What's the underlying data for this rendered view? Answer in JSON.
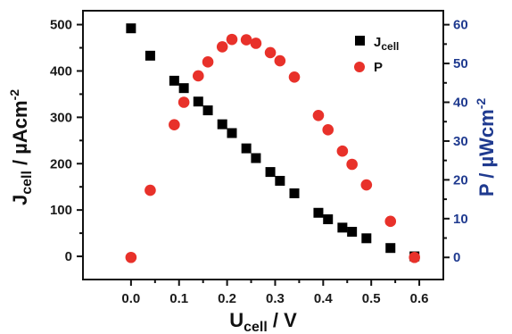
{
  "chart_data": {
    "type": "scatter",
    "x_axis": {
      "label_main": "U",
      "label_sub": "cell",
      "label_rest": " / V",
      "lim": [
        -0.1,
        0.65
      ],
      "ticks": [
        0.0,
        0.1,
        0.2,
        0.3,
        0.4,
        0.5,
        0.6
      ],
      "tick_labels": [
        "0.0",
        "0.1",
        "0.2",
        "0.3",
        "0.4",
        "0.5",
        "0.6"
      ]
    },
    "y_left": {
      "label_main": "J",
      "label_sub": "cell",
      "label_rest": " / µAcm",
      "label_sup": "-2",
      "lim": [
        -50,
        530
      ],
      "ticks": [
        0,
        100,
        200,
        300,
        400,
        500
      ],
      "tick_labels": [
        "0",
        "100",
        "200",
        "300",
        "400",
        "500"
      ]
    },
    "y_right": {
      "label_rest": "P / µWcm",
      "label_sup": "-2",
      "lim": [
        -5.7,
        63.6
      ],
      "ticks": [
        0,
        10,
        20,
        30,
        40,
        50,
        60
      ],
      "tick_labels": [
        "0",
        "10",
        "20",
        "30",
        "40",
        "50",
        "60"
      ],
      "color": "#1f3a8f"
    },
    "legend": {
      "placement": "top-right",
      "items": [
        {
          "main": "J",
          "sub": "cell"
        },
        {
          "main": "P",
          "sub": ""
        }
      ]
    },
    "series": [
      {
        "axis": "left",
        "marker": "square",
        "color": "#000000",
        "points": [
          [
            0.0,
            492
          ],
          [
            0.04,
            433
          ],
          [
            0.09,
            379
          ],
          [
            0.11,
            363
          ],
          [
            0.14,
            334
          ],
          [
            0.16,
            315
          ],
          [
            0.19,
            285
          ],
          [
            0.21,
            266
          ],
          [
            0.24,
            233
          ],
          [
            0.26,
            212
          ],
          [
            0.29,
            182
          ],
          [
            0.31,
            163
          ],
          [
            0.34,
            136
          ],
          [
            0.39,
            94
          ],
          [
            0.41,
            80
          ],
          [
            0.44,
            62
          ],
          [
            0.46,
            53
          ],
          [
            0.49,
            39
          ],
          [
            0.54,
            18
          ],
          [
            0.59,
            0
          ]
        ]
      },
      {
        "axis": "right",
        "marker": "circle",
        "color": "#e8312a",
        "points": [
          [
            0.0,
            0.0
          ],
          [
            0.04,
            17.3
          ],
          [
            0.09,
            34.2
          ],
          [
            0.11,
            40.0
          ],
          [
            0.14,
            46.8
          ],
          [
            0.16,
            50.4
          ],
          [
            0.19,
            54.3
          ],
          [
            0.21,
            56.2
          ],
          [
            0.24,
            56.1
          ],
          [
            0.26,
            55.2
          ],
          [
            0.29,
            52.8
          ],
          [
            0.31,
            50.7
          ],
          [
            0.34,
            46.5
          ],
          [
            0.39,
            36.6
          ],
          [
            0.41,
            32.9
          ],
          [
            0.44,
            27.4
          ],
          [
            0.46,
            24.0
          ],
          [
            0.49,
            18.7
          ],
          [
            0.54,
            9.3
          ],
          [
            0.59,
            0.0
          ]
        ]
      }
    ]
  }
}
